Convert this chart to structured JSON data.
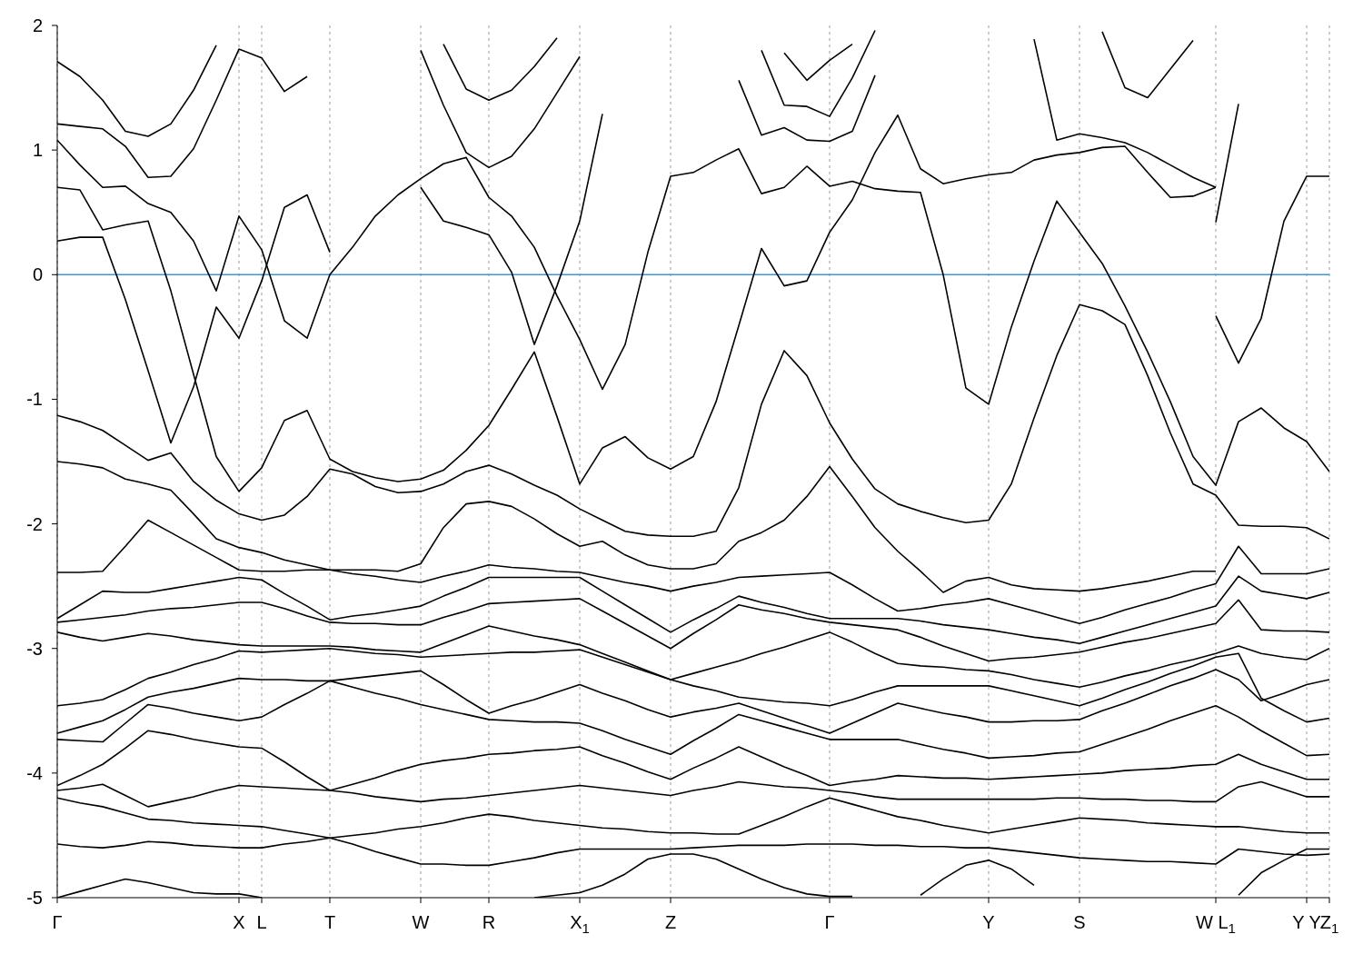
{
  "chart_data": {
    "type": "line",
    "ylim": [
      -5,
      2
    ],
    "categories": [
      "Γ",
      null,
      null,
      null,
      null,
      null,
      null,
      null,
      "X",
      "L",
      null,
      null,
      "T",
      null,
      null,
      null,
      "W",
      null,
      null,
      "R",
      null,
      null,
      null,
      "X$_{1}$",
      null,
      null,
      null,
      "Z",
      null,
      null,
      null,
      null,
      null,
      null,
      "Γ",
      null,
      null,
      null,
      null,
      null,
      null,
      "Y",
      null,
      null,
      null,
      "S",
      null,
      null,
      null,
      null,
      null,
      "W L$_{1}$",
      null,
      null,
      null,
      "Y Y",
      "Z$_{1}$"
    ],
    "yticks": [
      -5,
      -4,
      -3,
      -2,
      -1,
      0,
      1,
      2
    ],
    "grid": "x",
    "ref_lines": [
      {
        "axis": "y",
        "value": 0,
        "color": "#3a9ad9"
      }
    ],
    "series": [
      {
        "color": "#000000",
        "values": [
          1.71,
          1.59,
          1.4,
          1.15,
          1.11,
          1.21,
          1.48,
          1.84,
          null,
          null,
          null,
          null,
          null,
          null,
          null,
          null,
          null,
          null,
          null,
          null,
          null,
          null,
          null,
          null,
          null,
          null,
          null,
          null,
          null,
          null,
          null,
          null,
          null,
          null,
          null,
          null,
          null,
          null,
          null,
          null,
          null,
          null,
          null,
          null,
          null,
          null,
          null,
          null,
          null,
          null,
          null,
          null,
          null,
          null,
          null,
          null,
          null
        ]
      },
      {
        "color": "#000000",
        "values": [
          1.21,
          1.19,
          1.17,
          1.03,
          0.78,
          0.79,
          1.01,
          1.4,
          1.81,
          1.74,
          1.47,
          1.59,
          null,
          null,
          null,
          null,
          null,
          null,
          null,
          null,
          null,
          null,
          null,
          null,
          null,
          null,
          null,
          null,
          null,
          null,
          null,
          null,
          null,
          null,
          null,
          null,
          null,
          null,
          null,
          null,
          null,
          null,
          null,
          null,
          null,
          null,
          null,
          null,
          null,
          null,
          null,
          null,
          null,
          null,
          null,
          null,
          null
        ]
      },
      {
        "color": "#000000",
        "values": [
          1.08,
          0.88,
          0.7,
          0.71,
          0.57,
          0.5,
          0.27,
          -0.13,
          0.47,
          0.2,
          -0.37,
          -0.51,
          0.0,
          0.22,
          0.47,
          0.64,
          0.77,
          0.89,
          0.94,
          0.62,
          0.47,
          0.22,
          -0.17,
          -0.52,
          -0.92,
          -0.56,
          0.18,
          0.79,
          0.82,
          0.92,
          1.01,
          0.65,
          0.7,
          0.87,
          0.71,
          0.75,
          0.69,
          0.67,
          0.66,
          0.0,
          -0.91,
          -1.04,
          -0.42,
          0.11,
          0.59,
          0.34,
          0.09,
          -0.25,
          -0.62,
          -1.02,
          -1.46,
          -1.69,
          -1.18,
          -1.07,
          -1.23,
          -1.34,
          -1.58
        ]
      },
      {
        "color": "#000000",
        "values": [
          0.7,
          0.68,
          0.36,
          0.4,
          0.43,
          -0.13,
          -0.8,
          -1.46,
          -1.74,
          -1.55,
          -1.17,
          -1.09,
          -1.48,
          -1.58,
          -1.63,
          -1.66,
          -1.64,
          -1.57,
          -1.41,
          -1.21,
          -0.92,
          -0.62,
          -1.14,
          -1.68,
          -1.39,
          -1.3,
          -1.47,
          -1.56,
          -1.46,
          -1.02,
          -0.41,
          0.21,
          -0.09,
          -0.05,
          0.34,
          0.6,
          0.98,
          1.28,
          0.85,
          0.73,
          0.77,
          0.8,
          0.82,
          0.92,
          0.96,
          0.98,
          1.02,
          1.03,
          0.82,
          0.62,
          0.63,
          0.7,
          null,
          null,
          null,
          null,
          null
        ]
      },
      {
        "color": "#000000",
        "values": [
          0.27,
          0.3,
          0.3,
          -0.2,
          -0.77,
          -1.35,
          -0.9,
          -0.26,
          -0.51,
          -0.05,
          0.54,
          0.64,
          0.18,
          null,
          null,
          null,
          null,
          null,
          null,
          null,
          null,
          null,
          null,
          null,
          null,
          null,
          null,
          null,
          null,
          null,
          null,
          null,
          null,
          null,
          null,
          null,
          null,
          null,
          null,
          null,
          null,
          null,
          null,
          null,
          null,
          null,
          null,
          null,
          null,
          null,
          null,
          null,
          null,
          null,
          null,
          null,
          null
        ]
      },
      {
        "color": "#000000",
        "values": [
          null,
          null,
          null,
          null,
          null,
          null,
          null,
          null,
          null,
          null,
          null,
          null,
          null,
          null,
          null,
          null,
          0.7,
          0.43,
          0.38,
          0.32,
          0.02,
          -0.56,
          -0.09,
          0.43,
          1.29,
          null,
          null,
          null,
          null,
          null,
          null,
          null,
          null,
          null,
          null,
          null,
          null,
          null,
          null,
          null,
          null,
          null,
          null,
          null,
          null,
          null,
          null,
          null,
          null,
          null,
          null,
          null,
          null,
          null,
          null,
          null,
          null
        ]
      },
      {
        "color": "#000000",
        "values": [
          null,
          null,
          null,
          null,
          null,
          null,
          null,
          null,
          null,
          null,
          null,
          null,
          null,
          null,
          null,
          null,
          null,
          null,
          null,
          null,
          null,
          null,
          null,
          null,
          null,
          null,
          null,
          null,
          null,
          null,
          null,
          null,
          null,
          null,
          null,
          null,
          null,
          null,
          null,
          null,
          null,
          null,
          null,
          null,
          null,
          null,
          null,
          null,
          null,
          null,
          null,
          -0.33,
          -0.71,
          -0.35,
          0.43,
          0.79,
          0.79
        ]
      },
      {
        "color": "#000000",
        "values": [
          null,
          null,
          null,
          null,
          null,
          null,
          null,
          null,
          null,
          null,
          null,
          null,
          null,
          null,
          null,
          null,
          null,
          null,
          null,
          null,
          null,
          null,
          null,
          null,
          null,
          null,
          null,
          null,
          null,
          null,
          null,
          null,
          null,
          null,
          null,
          null,
          null,
          null,
          null,
          null,
          null,
          null,
          null,
          null,
          null,
          null,
          null,
          null,
          null,
          null,
          null,
          0.42,
          1.37,
          null,
          null,
          null,
          null
        ]
      },
      {
        "color": "#000000",
        "values": [
          null,
          null,
          null,
          null,
          null,
          null,
          null,
          null,
          null,
          null,
          null,
          null,
          null,
          null,
          null,
          null,
          null,
          null,
          null,
          null,
          null,
          null,
          null,
          null,
          null,
          null,
          null,
          null,
          null,
          null,
          1.56,
          1.12,
          1.18,
          1.08,
          1.07,
          1.15,
          1.6,
          null,
          null,
          null,
          null,
          null,
          null,
          null,
          null,
          null,
          null,
          null,
          null,
          null,
          null,
          null,
          null,
          null,
          null,
          null,
          null
        ]
      },
      {
        "color": "#000000",
        "values": [
          null,
          null,
          null,
          null,
          null,
          null,
          null,
          null,
          null,
          null,
          null,
          null,
          null,
          null,
          null,
          null,
          null,
          null,
          null,
          null,
          null,
          null,
          null,
          null,
          null,
          null,
          null,
          null,
          null,
          null,
          null,
          1.8,
          1.36,
          1.35,
          1.27,
          1.58,
          1.96,
          null,
          null,
          null,
          null,
          null,
          null,
          null,
          null,
          null,
          null,
          null,
          null,
          null,
          null,
          null,
          null,
          null,
          null,
          null,
          null
        ]
      },
      {
        "color": "#000000",
        "values": [
          null,
          null,
          null,
          null,
          null,
          null,
          null,
          null,
          null,
          null,
          null,
          null,
          null,
          null,
          null,
          null,
          null,
          null,
          null,
          null,
          null,
          null,
          null,
          null,
          null,
          null,
          null,
          null,
          null,
          null,
          null,
          null,
          1.78,
          1.56,
          1.72,
          1.85,
          null,
          null,
          null,
          null,
          null,
          null,
          null,
          null,
          null,
          null,
          null,
          null,
          null,
          null,
          null,
          null,
          null,
          null,
          null,
          null,
          null
        ]
      },
      {
        "color": "#000000",
        "values": [
          null,
          null,
          null,
          null,
          null,
          null,
          null,
          null,
          null,
          null,
          null,
          null,
          null,
          null,
          null,
          null,
          1.8,
          1.36,
          0.98,
          0.86,
          0.95,
          1.17,
          1.46,
          1.75,
          null,
          null,
          null,
          null,
          null,
          null,
          null,
          null,
          null,
          null,
          null,
          null,
          null,
          null,
          null,
          null,
          null,
          null,
          null,
          null,
          null,
          null,
          null,
          null,
          null,
          null,
          null,
          null,
          null,
          null,
          null,
          null,
          null
        ]
      },
      {
        "color": "#000000",
        "values": [
          null,
          null,
          null,
          null,
          null,
          null,
          null,
          null,
          null,
          null,
          null,
          null,
          null,
          null,
          null,
          null,
          null,
          1.85,
          1.49,
          1.4,
          1.48,
          1.67,
          1.9,
          null,
          null,
          null,
          null,
          null,
          null,
          null,
          null,
          null,
          null,
          null,
          null,
          null,
          null,
          null,
          null,
          null,
          null,
          null,
          null,
          null,
          null,
          null,
          null,
          null,
          null,
          null,
          null,
          null,
          null,
          null,
          null,
          null,
          null
        ]
      },
      {
        "color": "#000000",
        "values": [
          null,
          null,
          null,
          null,
          null,
          null,
          null,
          null,
          null,
          null,
          null,
          null,
          null,
          null,
          null,
          null,
          null,
          null,
          null,
          null,
          null,
          null,
          null,
          null,
          null,
          null,
          null,
          null,
          null,
          null,
          null,
          null,
          null,
          null,
          null,
          null,
          null,
          null,
          null,
          null,
          null,
          null,
          null,
          1.89,
          1.08,
          1.13,
          1.1,
          1.06,
          0.98,
          0.88,
          0.78,
          0.7,
          null,
          null,
          null,
          null,
          null
        ]
      },
      {
        "color": "#000000",
        "values": [
          null,
          null,
          null,
          null,
          null,
          null,
          null,
          null,
          null,
          null,
          null,
          null,
          null,
          null,
          null,
          null,
          null,
          null,
          null,
          null,
          null,
          null,
          null,
          null,
          null,
          null,
          null,
          null,
          null,
          null,
          null,
          null,
          null,
          null,
          null,
          null,
          null,
          null,
          null,
          null,
          null,
          null,
          null,
          null,
          null,
          null,
          1.95,
          1.5,
          1.42,
          1.65,
          1.88,
          null,
          null,
          null,
          null,
          null,
          null
        ]
      },
      {
        "color": "#000000",
        "values": [
          -1.5,
          -1.52,
          -1.55,
          -1.64,
          -1.68,
          -1.73,
          -1.92,
          -2.12,
          -2.19,
          -2.23,
          -2.29,
          -2.33,
          -2.37,
          -2.37,
          -2.37,
          -2.38,
          -2.32,
          -2.03,
          -1.84,
          -1.82,
          -1.86,
          -1.96,
          -2.08,
          -2.18,
          -2.14,
          -2.25,
          -2.33,
          -2.36,
          -2.36,
          -2.32,
          -2.14,
          -2.07,
          -1.97,
          -1.78,
          -1.54,
          -1.78,
          -2.03,
          -2.22,
          -2.38,
          -2.55,
          -2.46,
          -2.43,
          -2.49,
          -2.52,
          -2.53,
          -2.54,
          -2.52,
          -2.49,
          -2.46,
          -2.42,
          -2.38,
          -2.38,
          null,
          null,
          null,
          null,
          null
        ]
      },
      {
        "color": "#000000",
        "values": [
          -1.13,
          -1.18,
          -1.25,
          -1.37,
          -1.49,
          -1.43,
          -1.66,
          -1.81,
          -1.92,
          -1.97,
          -1.93,
          -1.78,
          -1.56,
          -1.6,
          -1.7,
          -1.75,
          -1.74,
          -1.68,
          -1.58,
          -1.53,
          -1.6,
          -1.69,
          -1.77,
          -1.88,
          -1.97,
          -2.06,
          -2.09,
          -2.1,
          -2.1,
          -2.06,
          -1.71,
          -1.04,
          -0.61,
          -0.81,
          -1.19,
          -1.48,
          -1.72,
          -1.84,
          -1.9,
          -1.95,
          -1.99,
          -1.97,
          -1.68,
          -1.15,
          -0.65,
          -0.24,
          -0.29,
          -0.4,
          -0.81,
          -1.27,
          -1.68,
          -1.77,
          -2.01,
          -2.02,
          -2.02,
          -2.03,
          -2.12
        ]
      },
      {
        "color": "#000000",
        "values": [
          -2.39,
          -2.39,
          -2.38,
          -2.18,
          -1.97,
          -2.07,
          -2.17,
          -2.27,
          -2.37,
          -2.38,
          -2.38,
          -2.37,
          -2.37,
          -2.4,
          -2.42,
          -2.45,
          -2.47,
          -2.42,
          -2.38,
          -2.33,
          -2.35,
          -2.36,
          -2.38,
          -2.39,
          -2.43,
          -2.47,
          -2.5,
          -2.54,
          -2.5,
          -2.47,
          -2.43,
          -2.42,
          -2.41,
          -2.4,
          -2.39,
          -2.49,
          -2.6,
          -2.7,
          -2.68,
          -2.65,
          -2.63,
          -2.6,
          -2.65,
          -2.7,
          -2.75,
          -2.8,
          -2.75,
          -2.69,
          -2.64,
          -2.59,
          -2.53,
          -2.48,
          -2.18,
          -2.4,
          -2.4,
          -2.4,
          -2.36
        ]
      },
      {
        "color": "#000000",
        "values": [
          -2.76,
          -2.65,
          -2.54,
          -2.55,
          -2.55,
          -2.52,
          -2.49,
          -2.46,
          -2.43,
          -2.45,
          -2.56,
          -2.66,
          -2.77,
          -2.74,
          -2.72,
          -2.69,
          -2.66,
          -2.58,
          -2.51,
          -2.43,
          -2.43,
          -2.43,
          -2.43,
          -2.43,
          -2.54,
          -2.65,
          -2.76,
          -2.87,
          -2.77,
          -2.68,
          -2.58,
          -2.63,
          -2.67,
          -2.72,
          -2.76,
          -2.76,
          -2.76,
          -2.76,
          -2.78,
          -2.81,
          -2.83,
          -2.85,
          -2.88,
          -2.91,
          -2.93,
          -2.96,
          -2.91,
          -2.86,
          -2.81,
          -2.76,
          -2.71,
          -2.66,
          -2.42,
          -2.54,
          -2.57,
          -2.6,
          -2.55
        ]
      },
      {
        "color": "#000000",
        "values": [
          -2.79,
          -2.77,
          -2.75,
          -2.73,
          -2.7,
          -2.68,
          -2.67,
          -2.65,
          -2.63,
          -2.63,
          -2.68,
          -2.74,
          -2.79,
          -2.8,
          -2.8,
          -2.81,
          -2.81,
          -2.75,
          -2.7,
          -2.64,
          -2.63,
          -2.62,
          -2.61,
          -2.6,
          -2.7,
          -2.8,
          -2.9,
          -3.0,
          -2.88,
          -2.77,
          -2.65,
          -2.69,
          -2.72,
          -2.76,
          -2.79,
          -2.81,
          -2.83,
          -2.85,
          -2.91,
          -2.98,
          -3.04,
          -3.1,
          -3.08,
          -3.07,
          -3.05,
          -3.03,
          -2.99,
          -2.95,
          -2.92,
          -2.88,
          -2.84,
          -2.8,
          -2.61,
          -2.85,
          -2.86,
          -2.86,
          -2.87
        ]
      },
      {
        "color": "#000000",
        "values": [
          -2.87,
          -2.91,
          -2.94,
          -2.91,
          -2.88,
          -2.9,
          -2.93,
          -2.95,
          -2.97,
          -2.98,
          -2.98,
          -2.98,
          -2.98,
          -2.99,
          -3.01,
          -3.02,
          -3.03,
          -2.96,
          -2.89,
          -2.82,
          -2.86,
          -2.9,
          -2.93,
          -2.97,
          -3.04,
          -3.11,
          -3.18,
          -3.25,
          -3.2,
          -3.15,
          -3.1,
          -3.04,
          -2.99,
          -2.93,
          -2.87,
          -2.95,
          -3.04,
          -3.12,
          -3.14,
          -3.15,
          -3.17,
          -3.18,
          -3.21,
          -3.25,
          -3.28,
          -3.31,
          -3.27,
          -3.22,
          -3.18,
          -3.13,
          -3.09,
          -3.04,
          -2.98,
          -3.04,
          -3.07,
          -3.09,
          -3.0
        ]
      },
      {
        "color": "#000000",
        "values": [
          -3.46,
          -3.44,
          -3.41,
          -3.33,
          -3.24,
          -3.19,
          -3.13,
          -3.08,
          -3.02,
          -3.03,
          -3.02,
          -3.01,
          -3.0,
          -3.02,
          -3.04,
          -3.05,
          -3.07,
          -3.06,
          -3.05,
          -3.04,
          -3.03,
          -3.03,
          -3.02,
          -3.01,
          -3.07,
          -3.13,
          -3.19,
          -3.25,
          -3.3,
          -3.34,
          -3.39,
          -3.41,
          -3.43,
          -3.44,
          -3.46,
          -3.41,
          -3.35,
          -3.3,
          -3.3,
          -3.3,
          -3.3,
          -3.3,
          -3.34,
          -3.38,
          -3.42,
          -3.46,
          -3.4,
          -3.33,
          -3.27,
          -3.2,
          -3.14,
          -3.07,
          -3.04,
          -3.4,
          -3.5,
          -3.59,
          -3.56
        ]
      },
      {
        "color": "#000000",
        "values": [
          -3.68,
          -3.63,
          -3.58,
          -3.49,
          -3.39,
          -3.35,
          -3.32,
          -3.28,
          -3.24,
          -3.25,
          -3.25,
          -3.26,
          -3.26,
          -3.24,
          -3.22,
          -3.2,
          -3.18,
          -3.29,
          -3.41,
          -3.52,
          -3.46,
          -3.41,
          -3.35,
          -3.29,
          -3.36,
          -3.42,
          -3.49,
          -3.55,
          -3.51,
          -3.48,
          -3.44,
          -3.5,
          -3.56,
          -3.62,
          -3.68,
          -3.6,
          -3.52,
          -3.44,
          -3.48,
          -3.52,
          -3.55,
          -3.59,
          -3.59,
          -3.58,
          -3.58,
          -3.57,
          -3.5,
          -3.44,
          -3.37,
          -3.3,
          -3.24,
          -3.17,
          -3.25,
          -3.42,
          -3.36,
          -3.29,
          -3.25
        ]
      },
      {
        "color": "#000000",
        "values": [
          -3.73,
          -3.74,
          -3.75,
          -3.6,
          -3.45,
          -3.48,
          -3.52,
          -3.55,
          -3.58,
          -3.55,
          -3.45,
          -3.36,
          -3.26,
          -3.31,
          -3.36,
          -3.4,
          -3.45,
          -3.49,
          -3.53,
          -3.57,
          -3.58,
          -3.59,
          -3.59,
          -3.6,
          -3.66,
          -3.73,
          -3.79,
          -3.85,
          -3.74,
          -3.64,
          -3.53,
          -3.58,
          -3.63,
          -3.68,
          -3.73,
          -3.73,
          -3.73,
          -3.73,
          -3.77,
          -3.81,
          -3.84,
          -3.88,
          -3.87,
          -3.86,
          -3.84,
          -3.83,
          -3.77,
          -3.71,
          -3.65,
          -3.58,
          -3.52,
          -3.46,
          -3.55,
          -3.66,
          -3.76,
          -3.86,
          -3.85
        ]
      },
      {
        "color": "#000000",
        "values": [
          -4.1,
          -4.02,
          -3.93,
          -3.8,
          -3.66,
          -3.69,
          -3.73,
          -3.76,
          -3.79,
          -3.8,
          -3.91,
          -4.03,
          -4.14,
          -4.09,
          -4.04,
          -3.98,
          -3.93,
          -3.9,
          -3.88,
          -3.85,
          -3.84,
          -3.82,
          -3.81,
          -3.79,
          -3.86,
          -3.92,
          -3.99,
          -4.05,
          -3.96,
          -3.88,
          -3.79,
          -3.87,
          -3.95,
          -4.02,
          -4.1,
          -4.07,
          -4.05,
          -4.02,
          -4.03,
          -4.04,
          -4.04,
          -4.05,
          -4.04,
          -4.03,
          -4.02,
          -4.01,
          -4.0,
          -3.98,
          -3.97,
          -3.96,
          -3.94,
          -3.93,
          -3.85,
          -3.93,
          -3.99,
          -4.05,
          -4.05
        ]
      },
      {
        "color": "#000000",
        "values": [
          -4.14,
          -4.12,
          -4.09,
          -4.18,
          -4.27,
          -4.23,
          -4.19,
          -4.14,
          -4.1,
          -4.11,
          -4.12,
          -4.13,
          -4.14,
          -4.16,
          -4.19,
          -4.21,
          -4.23,
          -4.21,
          -4.2,
          -4.18,
          -4.16,
          -4.14,
          -4.12,
          -4.1,
          -4.12,
          -4.14,
          -4.16,
          -4.18,
          -4.14,
          -4.11,
          -4.07,
          -4.09,
          -4.11,
          -4.12,
          -4.14,
          -4.16,
          -4.19,
          -4.21,
          -4.21,
          -4.21,
          -4.21,
          -4.21,
          -4.21,
          -4.21,
          -4.2,
          -4.2,
          -4.21,
          -4.21,
          -4.22,
          -4.22,
          -4.23,
          -4.23,
          -4.11,
          -4.07,
          -4.13,
          -4.19,
          -4.19
        ]
      },
      {
        "color": "#000000",
        "values": [
          -4.2,
          -4.24,
          -4.27,
          -4.32,
          -4.37,
          -4.38,
          -4.4,
          -4.41,
          -4.42,
          -4.43,
          -4.46,
          -4.49,
          -4.52,
          -4.5,
          -4.48,
          -4.45,
          -4.43,
          -4.4,
          -4.36,
          -4.33,
          -4.35,
          -4.38,
          -4.4,
          -4.42,
          -4.44,
          -4.45,
          -4.47,
          -4.48,
          -4.48,
          -4.49,
          -4.49,
          -4.42,
          -4.35,
          -4.27,
          -4.2,
          -4.25,
          -4.3,
          -4.35,
          -4.38,
          -4.42,
          -4.45,
          -4.48,
          -4.45,
          -4.42,
          -4.39,
          -4.36,
          -4.37,
          -4.38,
          -4.4,
          -4.41,
          -4.42,
          -4.43,
          -4.43,
          -4.45,
          -4.47,
          -4.48,
          -4.48
        ]
      },
      {
        "color": "#000000",
        "values": [
          -4.57,
          -4.59,
          -4.6,
          -4.58,
          -4.55,
          -4.56,
          -4.58,
          -4.59,
          -4.6,
          -4.6,
          -4.57,
          -4.55,
          -4.52,
          -4.57,
          -4.63,
          -4.68,
          -4.73,
          -4.73,
          -4.74,
          -4.74,
          -4.71,
          -4.68,
          -4.64,
          -4.61,
          -4.61,
          -4.61,
          -4.61,
          -4.61,
          -4.6,
          -4.59,
          -4.58,
          -4.58,
          -4.58,
          -4.57,
          -4.57,
          -4.57,
          -4.58,
          -4.58,
          -4.59,
          -4.59,
          -4.6,
          -4.6,
          -4.62,
          -4.64,
          -4.66,
          -4.68,
          -4.69,
          -4.7,
          -4.71,
          -4.71,
          -4.72,
          -4.73,
          -4.61,
          -4.63,
          -4.65,
          -4.66,
          -4.65
        ]
      },
      {
        "color": "#000000",
        "values": [
          -5.0,
          -4.95,
          -4.9,
          -4.85,
          -4.88,
          -4.92,
          -4.96,
          -4.97,
          -4.97,
          -5.0,
          null,
          null,
          null,
          null,
          null,
          null,
          null,
          null,
          null,
          null,
          null,
          null,
          null,
          null,
          null,
          null,
          null,
          null,
          null,
          null,
          null,
          null,
          null,
          null,
          null,
          null,
          null,
          null,
          null,
          null,
          null,
          null,
          null,
          null,
          null,
          null,
          null,
          null,
          null,
          null,
          null,
          null,
          null,
          null,
          null,
          null,
          null
        ]
      },
      {
        "color": "#000000",
        "values": [
          null,
          null,
          null,
          null,
          null,
          null,
          null,
          null,
          null,
          null,
          null,
          null,
          null,
          null,
          null,
          null,
          null,
          null,
          null,
          null,
          null,
          -5.0,
          -4.98,
          -4.96,
          -4.9,
          -4.81,
          -4.69,
          -4.65,
          -4.65,
          -4.69,
          -4.77,
          -4.85,
          -4.92,
          -4.97,
          -4.99,
          -4.99,
          null,
          null,
          null,
          null,
          null,
          null,
          null,
          null,
          null,
          null,
          null,
          null,
          null,
          null,
          null,
          null,
          null,
          null,
          null,
          null,
          null
        ]
      },
      {
        "color": "#000000",
        "values": [
          null,
          null,
          null,
          null,
          null,
          null,
          null,
          null,
          null,
          null,
          null,
          null,
          null,
          null,
          null,
          null,
          null,
          null,
          null,
          null,
          null,
          null,
          null,
          null,
          null,
          null,
          null,
          null,
          null,
          null,
          null,
          null,
          null,
          null,
          null,
          null,
          null,
          null,
          -4.98,
          -4.85,
          -4.74,
          -4.7,
          -4.77,
          -4.9,
          null,
          null,
          null,
          null,
          null,
          null,
          null,
          null,
          null,
          null,
          null,
          null,
          null
        ]
      },
      {
        "color": "#000000",
        "values": [
          null,
          null,
          null,
          null,
          null,
          null,
          null,
          null,
          null,
          null,
          null,
          null,
          null,
          null,
          null,
          null,
          null,
          null,
          null,
          null,
          null,
          null,
          null,
          null,
          null,
          null,
          null,
          null,
          null,
          null,
          null,
          null,
          null,
          null,
          null,
          null,
          null,
          null,
          null,
          null,
          null,
          null,
          null,
          null,
          null,
          null,
          null,
          null,
          null,
          null,
          null,
          null,
          -4.98,
          -4.8,
          -4.7,
          -4.61,
          -4.61
        ]
      }
    ]
  }
}
